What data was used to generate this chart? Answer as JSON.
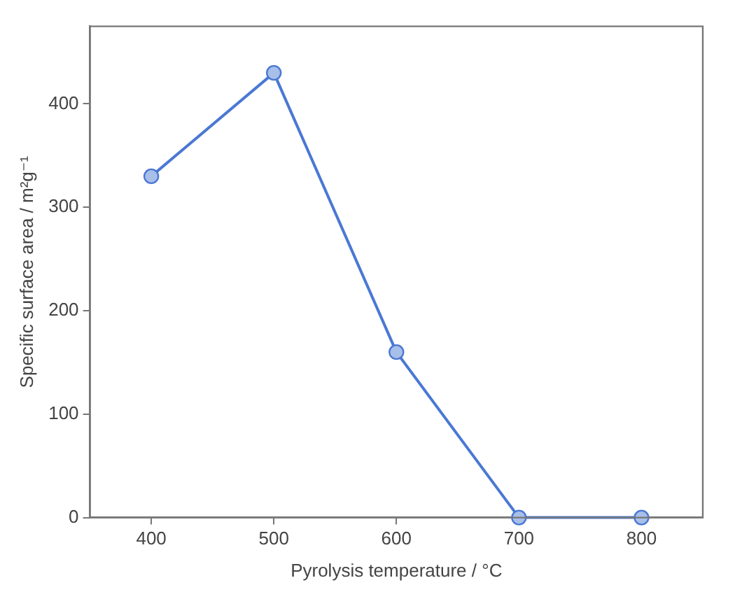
{
  "chart_data": {
    "type": "line",
    "xlabel": "Pyrolysis temperature / °C",
    "ylabel": "Specific surface area / m²g⁻¹",
    "x": [
      400,
      500,
      600,
      700,
      800
    ],
    "series": [
      {
        "color": "#4a78d4",
        "values": [
          330,
          430,
          160,
          0,
          0
        ]
      }
    ],
    "xlim": [
      350,
      850
    ],
    "xticks": [
      400,
      500,
      600,
      700,
      800
    ],
    "ylim": [
      0,
      475
    ],
    "yticks": [
      0,
      100,
      200,
      300,
      400
    ],
    "grid": false,
    "legend": false,
    "marker": "circle",
    "line_style": "solid"
  }
}
